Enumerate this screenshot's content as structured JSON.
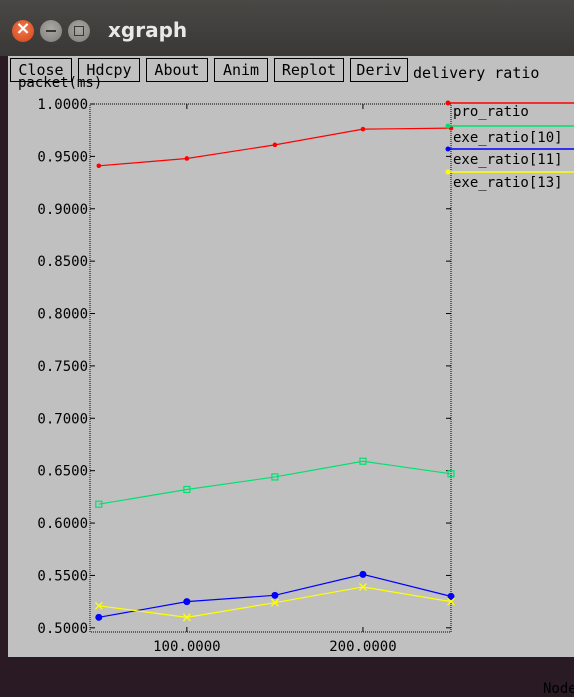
{
  "window": {
    "title": "xgraph"
  },
  "toolbar": {
    "buttons": [
      "Close",
      "Hdcpy",
      "About",
      "Anim",
      "Replot",
      "Deriv"
    ]
  },
  "chart_data": {
    "type": "line",
    "title": "delivery ratio",
    "ylabel": "packet(ms)",
    "xlabel": "Node",
    "xlim": [
      45,
      250
    ],
    "ylim": [
      0.496,
      1.0
    ],
    "xticks": [
      100,
      200
    ],
    "xtick_labels": [
      "100.0000",
      "200.0000"
    ],
    "yticks": [
      0.5,
      0.55,
      0.6,
      0.65,
      0.7,
      0.75,
      0.8,
      0.85,
      0.9,
      0.95,
      1.0
    ],
    "ytick_labels": [
      "0.5000",
      "0.5500",
      "0.6000",
      "0.6500",
      "0.7000",
      "0.7500",
      "0.8000",
      "0.8500",
      "0.9000",
      "0.9500",
      "1.0000"
    ],
    "x": [
      50,
      100,
      150,
      200,
      250
    ],
    "series": [
      {
        "name": "pro_ratio",
        "color": "#ff0000",
        "marker": "dot",
        "values": [
          0.941,
          0.948,
          0.961,
          0.976,
          0.977
        ]
      },
      {
        "name": "exe_ratio[10]",
        "color": "#00e070",
        "marker": "square",
        "values": [
          0.618,
          0.632,
          0.644,
          0.659,
          0.647
        ]
      },
      {
        "name": "exe_ratio[11]",
        "color": "#0000ff",
        "marker": "circle",
        "values": [
          0.51,
          0.525,
          0.531,
          0.551,
          0.53
        ]
      },
      {
        "name": "exe_ratio[13]",
        "color": "#ffff00",
        "marker": "cross",
        "values": [
          0.521,
          0.51,
          0.524,
          0.539,
          0.525
        ]
      }
    ],
    "grid": false,
    "legend": "right"
  }
}
